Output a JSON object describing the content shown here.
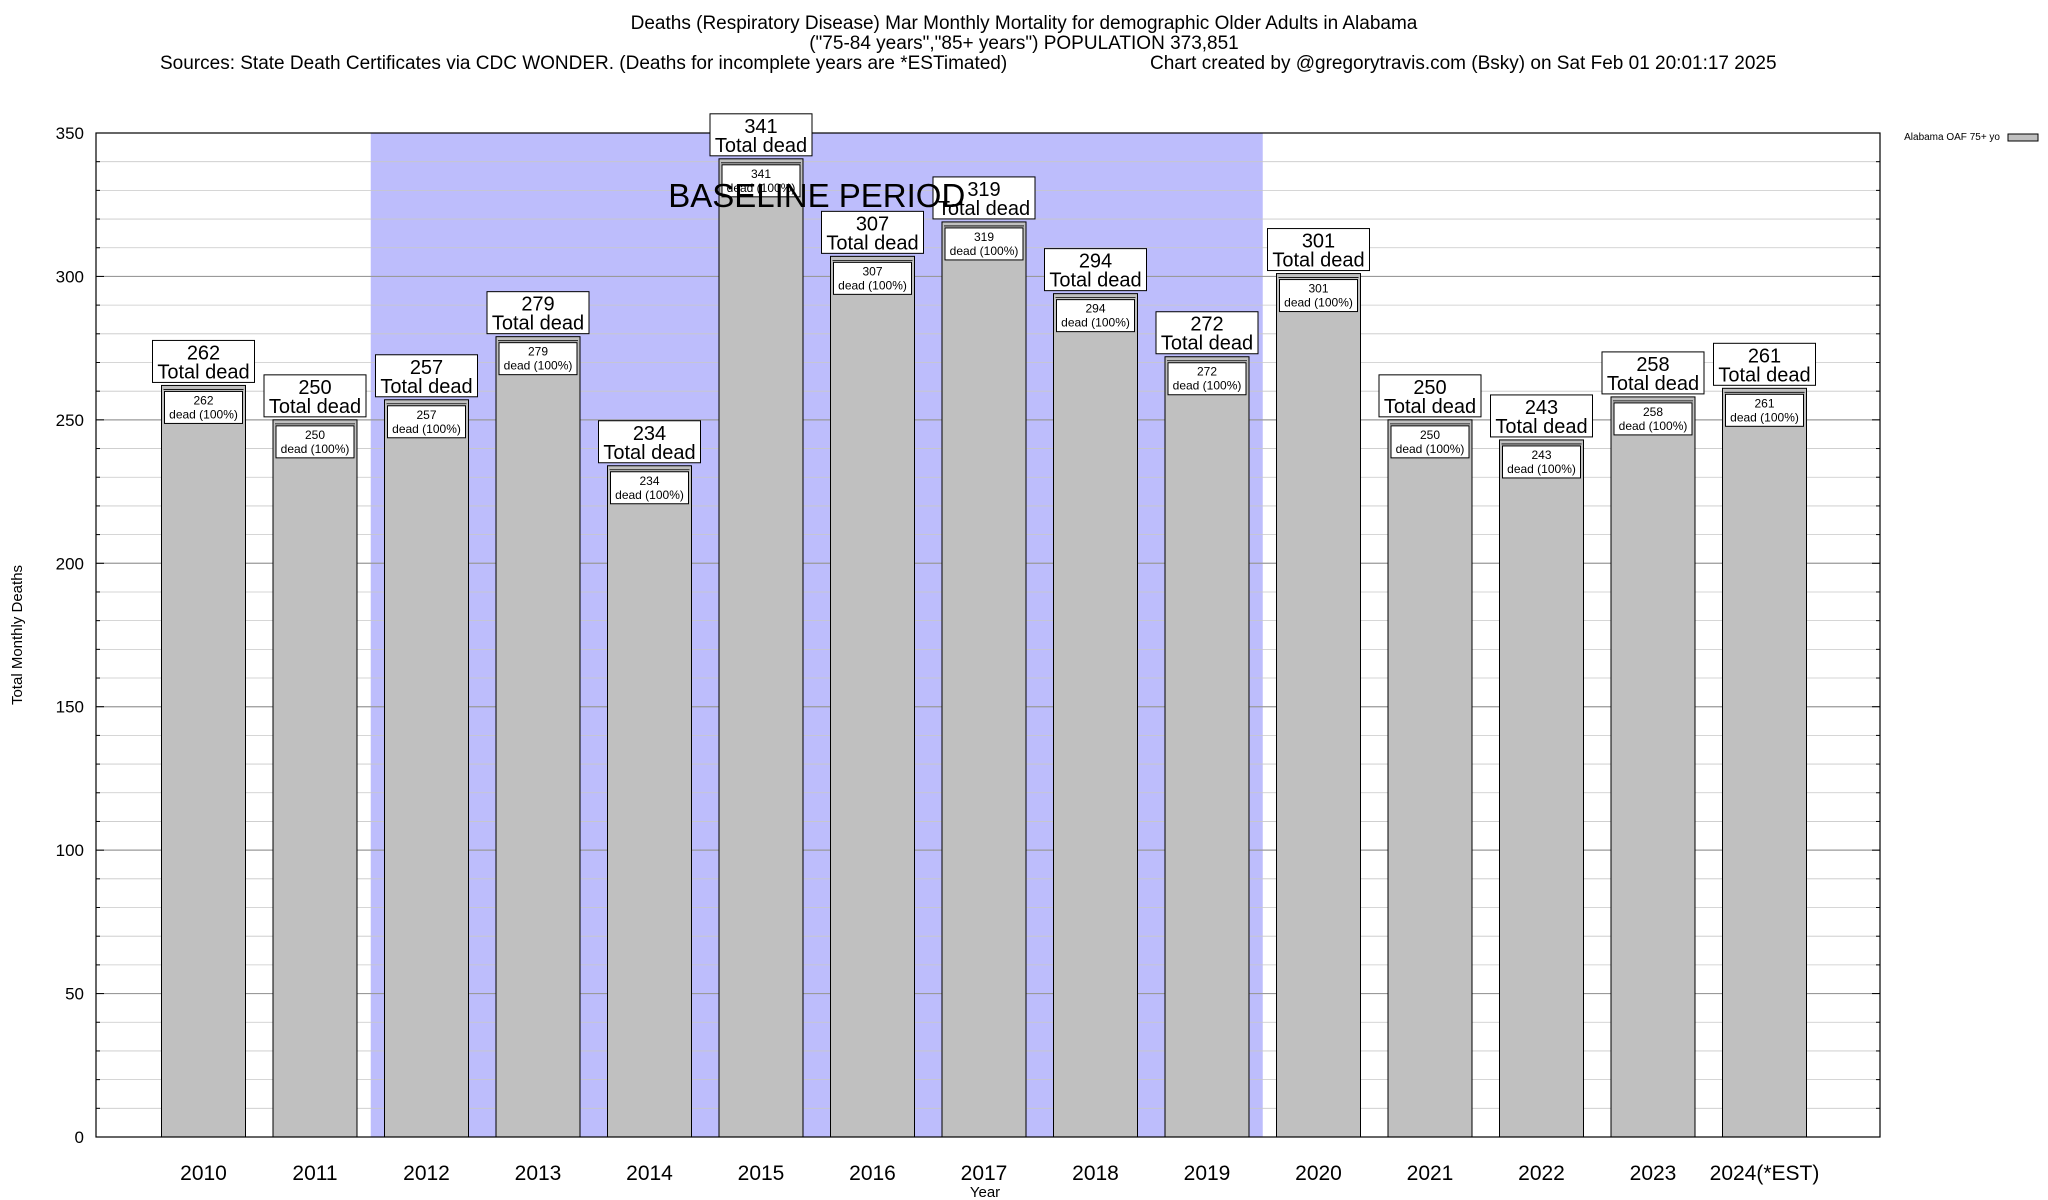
{
  "title": {
    "line1": "Deaths (Respiratory Disease) Mar Monthly Mortality for demographic Older Adults in Alabama",
    "line2": "(\"75-84 years\",\"85+ years\") POPULATION 373,851",
    "sources": "Sources: State Death Certificates via CDC WONDER. (Deaths for incomplete years are *ESTimated)",
    "credit": "Chart created by @gregorytravis.com (Bsky) on Sat Feb 01 20:01:17 2025"
  },
  "chart_data": {
    "type": "bar",
    "xlabel": "Year",
    "ylabel": "Total Monthly Deaths",
    "ylim": [
      0,
      350
    ],
    "yticks": [
      0,
      50,
      100,
      150,
      200,
      250,
      300,
      350
    ],
    "categories": [
      "2010",
      "2011",
      "2012",
      "2013",
      "2014",
      "2015",
      "2016",
      "2017",
      "2018",
      "2019",
      "2020",
      "2021",
      "2022",
      "2023",
      "2024(*EST)"
    ],
    "series": [
      {
        "name": "Alabama OAF 75+ yo",
        "values": [
          262,
          250,
          257,
          279,
          234,
          341,
          307,
          319,
          294,
          272,
          301,
          250,
          243,
          258,
          261
        ]
      }
    ],
    "total_label": "Total dead",
    "inner_label": "dead (100%)",
    "baseline": {
      "label": "BASELINE PERIOD",
      "from": "2012",
      "to": "2019",
      "color": "#bdbdfc"
    },
    "bar_color": "#c0c0c0",
    "grid": true,
    "legend_position": "top-right"
  }
}
